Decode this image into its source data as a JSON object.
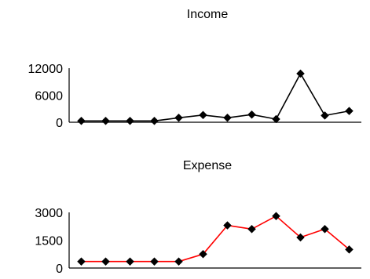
{
  "chart_data": [
    {
      "type": "line",
      "title": "Income",
      "xlabel": "",
      "ylabel": "",
      "ylim": [
        0,
        12000
      ],
      "yticks": [
        0,
        6000,
        12000
      ],
      "x": [
        1,
        2,
        3,
        4,
        5,
        6,
        7,
        8,
        9,
        10,
        11,
        12
      ],
      "series": [
        {
          "values": [
            300,
            300,
            300,
            300,
            1000,
            1600,
            1000,
            1700,
            700,
            10800,
            1500,
            2500
          ],
          "color": "#000000"
        }
      ],
      "grid": false,
      "legend": "none"
    },
    {
      "type": "line",
      "title": "Expense",
      "xlabel": "",
      "ylabel": "",
      "ylim": [
        0,
        3000
      ],
      "yticks": [
        0,
        1500,
        3000
      ],
      "x": [
        1,
        2,
        3,
        4,
        5,
        6,
        7,
        8,
        9,
        10,
        11,
        12
      ],
      "series": [
        {
          "values": [
            350,
            350,
            350,
            350,
            350,
            750,
            2300,
            2100,
            2800,
            1650,
            2100,
            1000
          ],
          "color": "#ff0000"
        }
      ],
      "grid": false,
      "legend": "none"
    }
  ]
}
